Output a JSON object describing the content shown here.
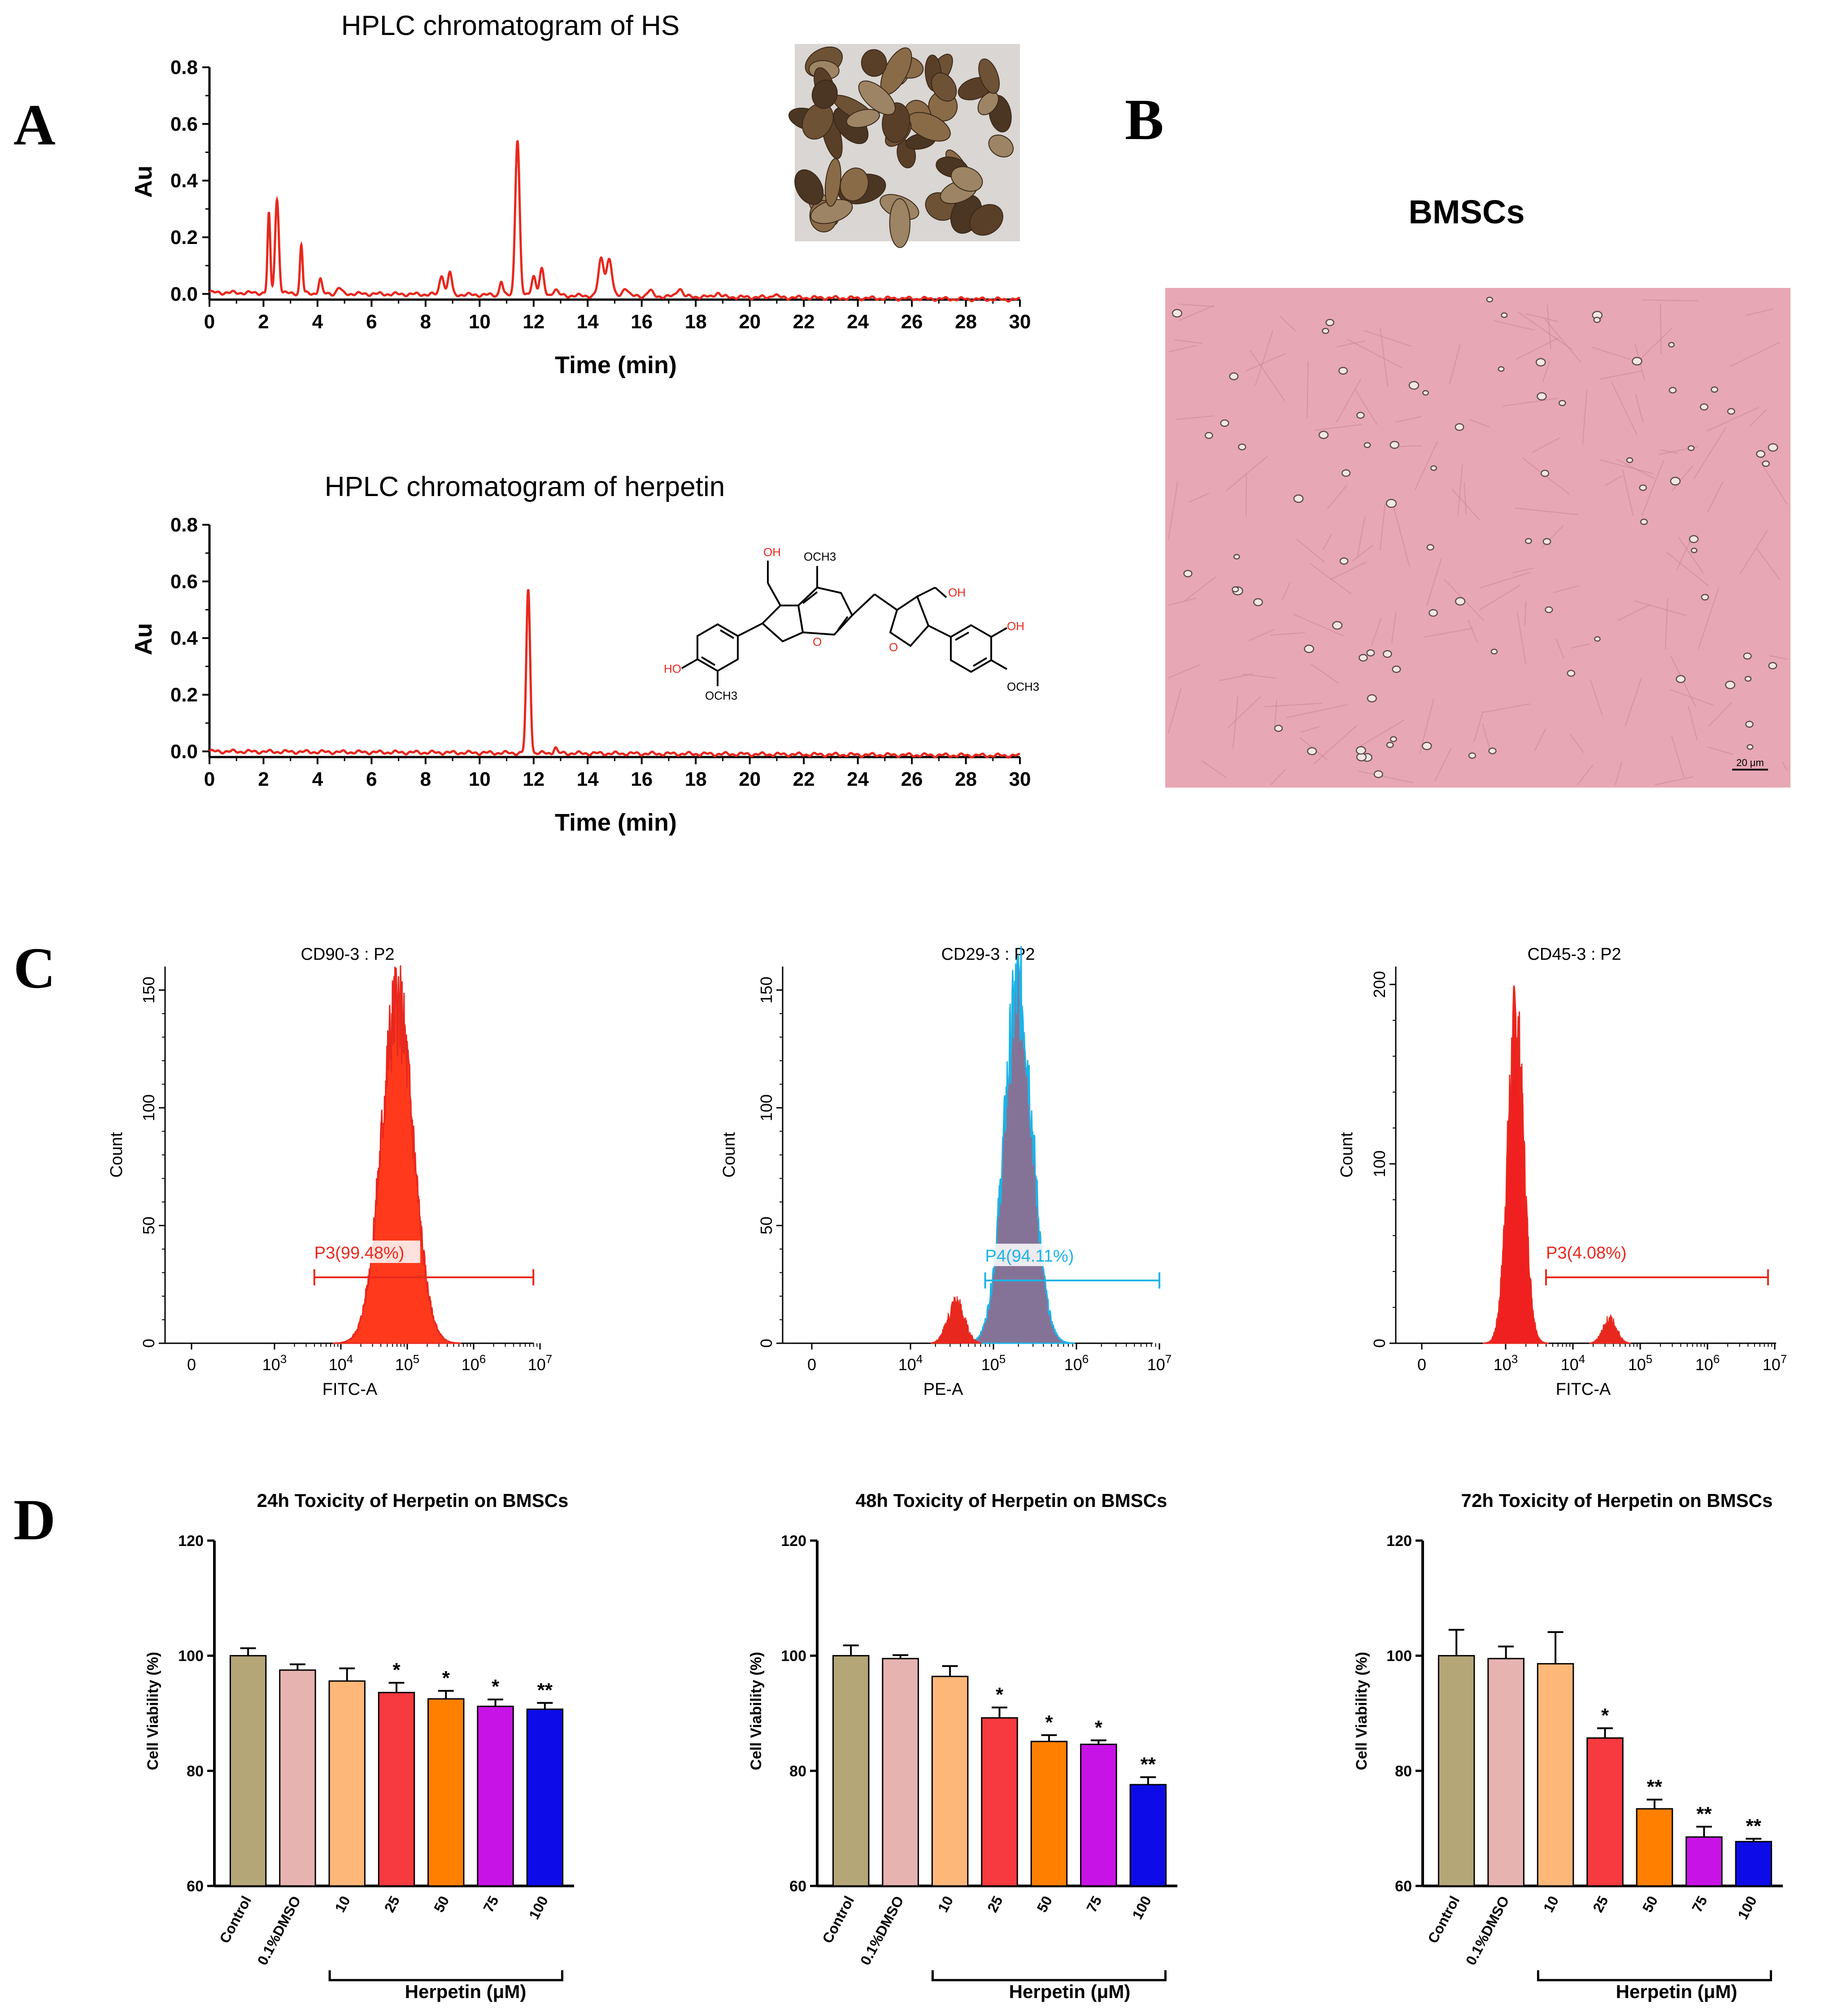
{
  "panels": {
    "A": "A",
    "B": "B",
    "C": "C",
    "D": "D"
  },
  "colors": {
    "red": "#e8281e",
    "cyan": "#1ab4e8",
    "purple_fill": "#857397",
    "pink_bg": "#e7a7b4",
    "bar_colors": [
      "#b5a677",
      "#e6b3b1",
      "#fdb779",
      "#f63a3f",
      "#ff7f00",
      "#c813e6",
      "#0d0ce8"
    ]
  },
  "chart_data": [
    {
      "id": "hplc_hs",
      "type": "line",
      "title": "HPLC chromatogram of HS",
      "xlabel": "Time (min)",
      "ylabel": "Au",
      "xlim": [
        0,
        30
      ],
      "ylim": [
        -0.02,
        0.8
      ],
      "xticks": [
        "0",
        "2",
        "4",
        "6",
        "8",
        "10",
        "12",
        "14",
        "16",
        "18",
        "20",
        "22",
        "24",
        "26",
        "28",
        "30"
      ],
      "yticks": [
        "0.0",
        "0.2",
        "0.4",
        "0.6",
        "0.8"
      ],
      "baseline": [
        [
          0,
          0.005
        ],
        [
          30,
          -0.02
        ]
      ],
      "peaks": [
        [
          2.2,
          0.28,
          0.05
        ],
        [
          2.5,
          0.33,
          0.07
        ],
        [
          3.4,
          0.17,
          0.05
        ],
        [
          4.1,
          0.05,
          0.06
        ],
        [
          4.8,
          0.02,
          0.08
        ],
        [
          8.6,
          0.07,
          0.08
        ],
        [
          8.9,
          0.08,
          0.07
        ],
        [
          10.8,
          0.05,
          0.06
        ],
        [
          11.4,
          0.55,
          0.08
        ],
        [
          12.0,
          0.07,
          0.08
        ],
        [
          12.3,
          0.09,
          0.08
        ],
        [
          12.8,
          0.02,
          0.1
        ],
        [
          14.5,
          0.13,
          0.1
        ],
        [
          14.8,
          0.13,
          0.1
        ],
        [
          15.4,
          0.03,
          0.1
        ],
        [
          16.3,
          0.02,
          0.1
        ],
        [
          17.4,
          0.03,
          0.1
        ],
        [
          18.8,
          0.015,
          0.1
        ],
        [
          20.9,
          0.01,
          0.1
        ]
      ],
      "inset_image": "dried herb fruit photo"
    },
    {
      "id": "hplc_herpetin",
      "type": "line",
      "title": "HPLC chromatogram of herpetin",
      "xlabel": "Time (min)",
      "ylabel": "Au",
      "xlim": [
        0,
        30
      ],
      "ylim": [
        -0.02,
        0.8
      ],
      "xticks": [
        "0",
        "2",
        "4",
        "6",
        "8",
        "10",
        "12",
        "14",
        "16",
        "18",
        "20",
        "22",
        "24",
        "26",
        "28",
        "30"
      ],
      "yticks": [
        "0.0",
        "0.2",
        "0.4",
        "0.6",
        "0.8"
      ],
      "baseline": [
        [
          0,
          0.0
        ],
        [
          30,
          -0.015
        ]
      ],
      "peaks": [
        [
          11.8,
          0.575,
          0.07
        ],
        [
          12.8,
          0.02,
          0.06
        ]
      ],
      "structure_labels": {
        "oh_left": "OH",
        "och3_top": "OCH3",
        "oh_right": "OH",
        "ho": "HO",
        "och3_bl": "OCH3",
        "oh_ring": "OH",
        "och3_br": "OCH3"
      }
    },
    {
      "id": "flow_cd90",
      "type": "histogram",
      "title": "CD90-3 : P2",
      "xlabel": "FITC-A",
      "ylabel": "Count",
      "ylim": [
        0,
        160
      ],
      "yticks": [
        "0",
        "50",
        "100",
        "150"
      ],
      "xticks": [
        "0",
        "10^3",
        "10^4",
        "10^5",
        "10^6",
        "10^7"
      ],
      "gate": {
        "label": "P3(99.48%)",
        "from": "10^3.6",
        "to": "10^6.9"
      },
      "distribution": {
        "center_log": 4.85,
        "sd_log": 0.24,
        "peak": 143
      }
    },
    {
      "id": "flow_cd29",
      "type": "histogram",
      "title": "CD29-3 : P2",
      "xlabel": "PE-A",
      "ylabel": "Count",
      "ylim": [
        0,
        160
      ],
      "yticks": [
        "0",
        "50",
        "100",
        "150"
      ],
      "xticks": [
        "0",
        "10^4",
        "10^5",
        "10^6",
        "10^7"
      ],
      "gate": {
        "label": "P4(94.11%)",
        "from": "10^4.9",
        "to": "10^7"
      },
      "distribution": {
        "center_log": 5.3,
        "sd_log": 0.17,
        "peak": 150
      }
    },
    {
      "id": "flow_cd45",
      "type": "histogram",
      "title": "CD45-3 : P2",
      "xlabel": "FITC-A",
      "ylabel": "Count",
      "ylim": [
        0,
        210
      ],
      "yticks": [
        "0",
        "100",
        "200"
      ],
      "xticks": [
        "0",
        "10^3",
        "10^4",
        "10^5",
        "10^6",
        "10^7"
      ],
      "gate": {
        "label": "P3(4.08%)",
        "from": "10^3.6",
        "to": "10^6.9"
      },
      "distribution": {
        "center_log": 3.15,
        "sd_log": 0.12,
        "peak": 180
      }
    },
    {
      "id": "tox_24h",
      "type": "bar",
      "title": "24h Toxicity of Herpetin on BMSCs",
      "ylabel": "Cell Viability (%)",
      "ylim": [
        60,
        120
      ],
      "yticks": [
        "60",
        "80",
        "100",
        "120"
      ],
      "categories": [
        "Control",
        "0.1%DMSO",
        "10",
        "25",
        "50",
        "75",
        "100"
      ],
      "values": [
        100,
        97.5,
        95.6,
        93.6,
        92.5,
        91.2,
        90.7
      ],
      "errors": [
        1.3,
        1.0,
        2.2,
        1.7,
        1.4,
        1.2,
        1.1
      ],
      "significance": [
        "",
        "",
        "",
        "*",
        "*",
        "*",
        "**"
      ],
      "group_label": "Herpetin (μM)"
    },
    {
      "id": "tox_48h",
      "type": "bar",
      "title": "48h Toxicity of Herpetin on BMSCs",
      "ylabel": "Cell Viability (%)",
      "ylim": [
        60,
        120
      ],
      "yticks": [
        "60",
        "80",
        "100",
        "120"
      ],
      "categories": [
        "Control",
        "0.1%DMSO",
        "10",
        "25",
        "50",
        "75",
        "100"
      ],
      "values": [
        100,
        99.5,
        96.4,
        89.2,
        85.1,
        84.6,
        77.6
      ],
      "errors": [
        1.8,
        0.6,
        1.8,
        1.8,
        1.1,
        0.7,
        1.3
      ],
      "significance": [
        "",
        "",
        "",
        "*",
        "*",
        "*",
        "**"
      ],
      "group_label": "Herpetin (μM)"
    },
    {
      "id": "tox_72h",
      "type": "bar",
      "title": "72h Toxicity of Herpetin on BMSCs",
      "ylabel": "Cell Viability (%)",
      "ylim": [
        60,
        120
      ],
      "yticks": [
        "60",
        "80",
        "100",
        "120"
      ],
      "categories": [
        "Control",
        "0.1%DMSO",
        "10",
        "25",
        "50",
        "75",
        "100"
      ],
      "values": [
        100,
        99.5,
        98.6,
        85.7,
        73.4,
        68.5,
        67.7
      ],
      "errors": [
        4.5,
        2.1,
        5.5,
        1.7,
        1.6,
        1.8,
        0.5
      ],
      "significance": [
        "",
        "",
        "",
        "*",
        "**",
        "**",
        "**"
      ],
      "group_label": "Herpetin (μM)"
    }
  ],
  "micrograph": {
    "title": "BMSCs",
    "scale_bar": "20 μm"
  }
}
